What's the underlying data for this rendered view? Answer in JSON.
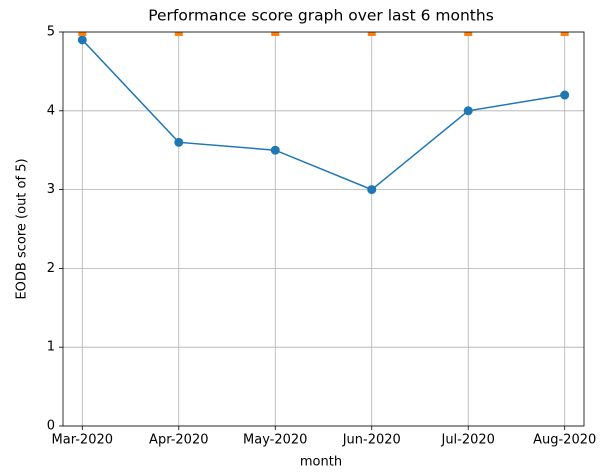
{
  "chart_data": {
    "type": "line",
    "title": "Performance score graph over last 6 months",
    "xlabel": "month",
    "ylabel": "EODB score (out of 5)",
    "categories": [
      "Mar-2020",
      "Apr-2020",
      "May-2020",
      "Jun-2020",
      "Jul-2020",
      "Aug-2020"
    ],
    "series": [
      {
        "color": "#1f77b4",
        "values": [
          4.9,
          3.6,
          3.5,
          3.0,
          4.0,
          4.2
        ],
        "marker": "circle",
        "line": true
      },
      {
        "color": "#ff7f0e",
        "values": [
          5,
          5,
          5,
          5,
          5,
          5
        ],
        "marker": "square",
        "line": false
      }
    ],
    "ylim": [
      0,
      5
    ],
    "yticks": [
      0,
      1,
      2,
      3,
      4,
      5
    ],
    "grid": true
  }
}
